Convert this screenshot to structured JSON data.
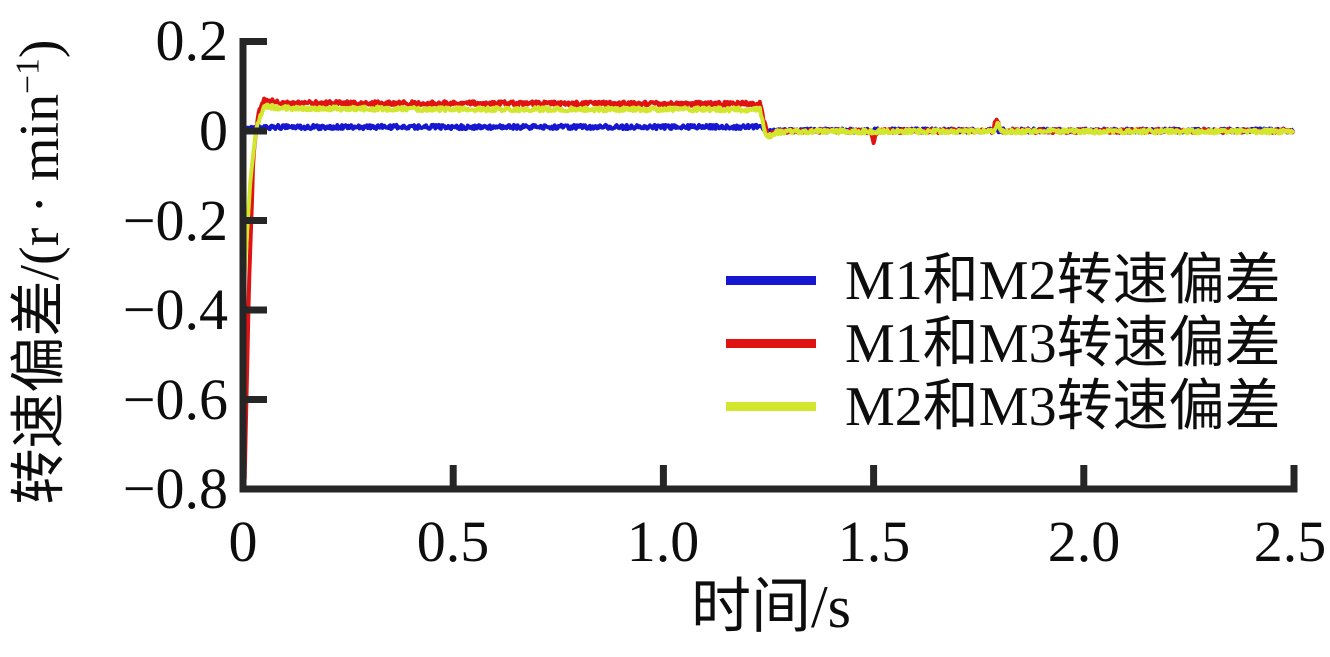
{
  "labels": {
    "ylabel_main": "转速偏差/(r · min",
    "ylabel_sup": "−1",
    "ylabel_close": ")"
  },
  "chart_data": {
    "type": "line",
    "title": "",
    "xlabel": "时间/s",
    "ylabel": "转速偏差/(r·min⁻¹)",
    "xlim": [
      0,
      2.5
    ],
    "ylim": [
      -0.8,
      0.2
    ],
    "xticks": [
      0,
      0.5,
      1.0,
      1.5,
      2.0,
      2.5
    ],
    "xtick_labels": [
      "0",
      "0.5",
      "1.0",
      "1.5",
      "2.0",
      "2.5"
    ],
    "yticks": [
      0.2,
      0,
      -0.2,
      -0.4,
      -0.6,
      -0.8
    ],
    "ytick_labels": [
      "0.2",
      "0",
      "−0.2",
      "−0.4",
      "−0.6",
      "−0.8"
    ],
    "grid": false,
    "legend_position": "center right",
    "axis_color": "#262626",
    "background": "#ffffff",
    "series": [
      {
        "name": "M1和M2转速偏差",
        "color": "#1717d2",
        "points": [
          [
            0,
            0
          ],
          [
            0.012,
            0.004
          ],
          [
            0.03,
            0.008
          ],
          [
            0.08,
            0.009
          ],
          [
            1.23,
            0.009
          ],
          [
            1.244,
            -0.004
          ],
          [
            1.27,
            0.0
          ],
          [
            1.35,
            0.001
          ],
          [
            2.5,
            0.001
          ]
        ]
      },
      {
        "name": "M1和M3转速偏差",
        "color": "#e01212",
        "points": [
          [
            0.004,
            -0.78
          ],
          [
            0.014,
            -0.35
          ],
          [
            0.025,
            -0.05
          ],
          [
            0.038,
            0.045
          ],
          [
            0.05,
            0.069
          ],
          [
            0.09,
            0.063
          ],
          [
            0.4,
            0.062
          ],
          [
            1.23,
            0.061
          ],
          [
            1.248,
            -0.012
          ],
          [
            1.27,
            -0.002
          ],
          [
            1.32,
            0.0
          ],
          [
            1.492,
            0.0
          ],
          [
            1.5,
            -0.026
          ],
          [
            1.508,
            0.0
          ],
          [
            1.783,
            0.0
          ],
          [
            1.793,
            0.03
          ],
          [
            1.803,
            0.0
          ],
          [
            2.5,
            0.0
          ]
        ]
      },
      {
        "name": "M2和M3转速偏差",
        "color": "#d3e62e",
        "points": [
          [
            0.004,
            -0.315
          ],
          [
            0.018,
            -0.1
          ],
          [
            0.032,
            0.01
          ],
          [
            0.05,
            0.056
          ],
          [
            0.09,
            0.051
          ],
          [
            0.4,
            0.049
          ],
          [
            1.23,
            0.048
          ],
          [
            1.244,
            -0.013
          ],
          [
            1.27,
            -0.003
          ],
          [
            1.32,
            -0.001
          ],
          [
            1.785,
            -0.001
          ],
          [
            1.795,
            0.018
          ],
          [
            1.806,
            -0.001
          ],
          [
            2.5,
            -0.001
          ]
        ]
      }
    ]
  }
}
